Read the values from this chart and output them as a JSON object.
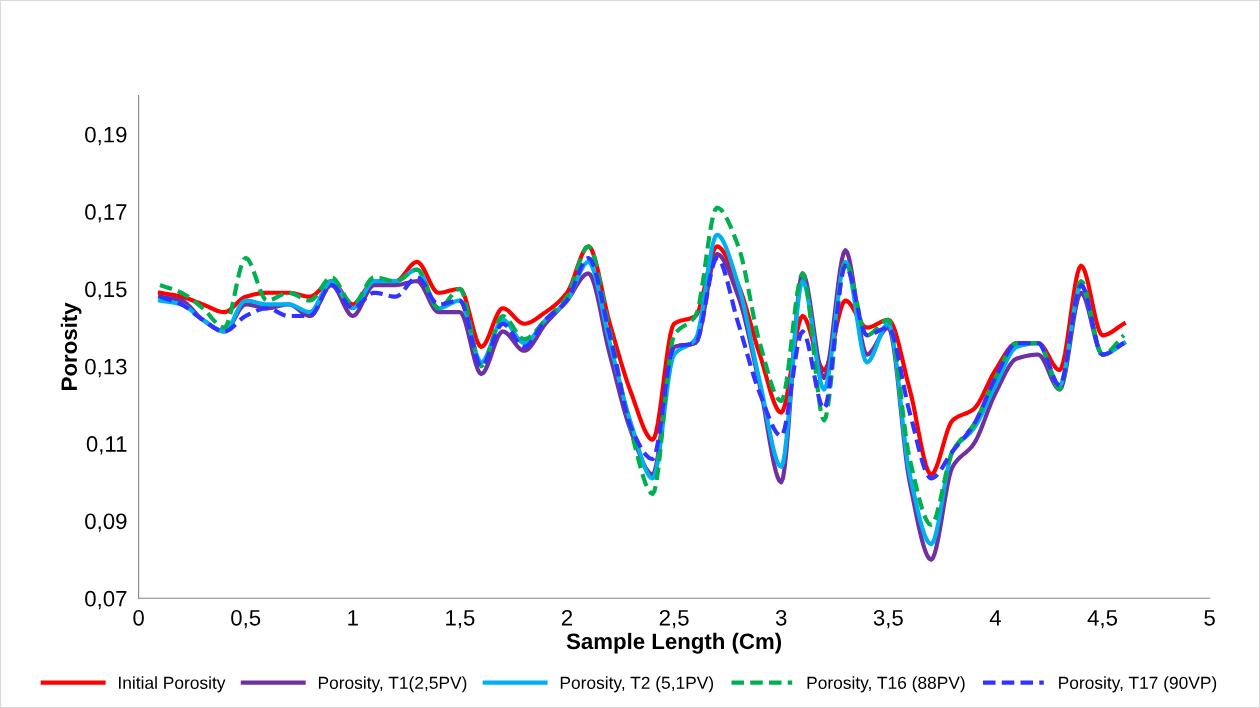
{
  "chart_data": {
    "type": "line",
    "xlabel": "Sample Length (Cm)",
    "ylabel": "Porosity",
    "x": [
      0.1,
      0.2,
      0.3,
      0.4,
      0.5,
      0.6,
      0.7,
      0.8,
      0.9,
      1.0,
      1.1,
      1.2,
      1.3,
      1.4,
      1.5,
      1.6,
      1.7,
      1.8,
      1.9,
      2.0,
      2.1,
      2.2,
      2.3,
      2.4,
      2.5,
      2.6,
      2.7,
      2.8,
      2.9,
      3.0,
      3.1,
      3.2,
      3.3,
      3.4,
      3.5,
      3.6,
      3.7,
      3.8,
      3.9,
      4.0,
      4.1,
      4.2,
      4.3,
      4.4,
      4.5,
      4.6
    ],
    "xlim": [
      0,
      5
    ],
    "xticks": [
      0,
      {
        "value": 0.5,
        "label": "0,5"
      },
      1,
      {
        "value": 1.5,
        "label": "1,5"
      },
      2,
      {
        "value": 2.5,
        "label": "2,5"
      },
      3,
      {
        "value": 3.5,
        "label": "3,5"
      },
      4,
      {
        "value": 4.5,
        "label": "4,5"
      },
      5
    ],
    "ylim": [
      0.07,
      0.2
    ],
    "yticks": [
      {
        "value": 0.07,
        "label": "0,07"
      },
      {
        "value": 0.09,
        "label": "0,09"
      },
      {
        "value": 0.11,
        "label": "0,11"
      },
      {
        "value": 0.13,
        "label": "0,13"
      },
      {
        "value": 0.15,
        "label": "0,15"
      },
      {
        "value": 0.17,
        "label": "0,17"
      },
      {
        "value": 0.19,
        "label": "0,19"
      }
    ],
    "grid": false,
    "legend": "bottom",
    "marker": "none",
    "series": [
      {
        "name": "Initial Porosity",
        "color": "#ff0000",
        "line_style": "solid",
        "values": [
          0.149,
          0.148,
          0.146,
          0.144,
          0.148,
          0.149,
          0.149,
          0.148,
          0.152,
          0.146,
          0.152,
          0.152,
          0.157,
          0.149,
          0.15,
          0.135,
          0.145,
          0.141,
          0.144,
          0.149,
          0.161,
          0.141,
          0.123,
          0.111,
          0.141,
          0.143,
          0.161,
          0.151,
          0.133,
          0.118,
          0.143,
          0.129,
          0.147,
          0.14,
          0.142,
          0.124,
          0.102,
          0.116,
          0.119,
          0.129,
          0.136,
          0.136,
          0.129,
          0.156,
          0.138,
          0.141
        ]
      },
      {
        "name": "Porosity, T1(2,5PV)",
        "color": "#7030a0",
        "line_style": "solid",
        "values": [
          0.148,
          0.147,
          0.142,
          0.139,
          0.146,
          0.145,
          0.146,
          0.143,
          0.151,
          0.143,
          0.151,
          0.151,
          0.152,
          0.144,
          0.144,
          0.128,
          0.139,
          0.134,
          0.141,
          0.147,
          0.154,
          0.133,
          0.113,
          0.102,
          0.135,
          0.136,
          0.159,
          0.148,
          0.125,
          0.1,
          0.154,
          0.127,
          0.16,
          0.133,
          0.14,
          0.1,
          0.08,
          0.104,
          0.11,
          0.123,
          0.132,
          0.133,
          0.124,
          0.149,
          0.133,
          0.136
        ]
      },
      {
        "name": "Porosity, T2 (5,1PV)",
        "color": "#00b0f0",
        "line_style": "solid",
        "values": [
          0.147,
          0.146,
          0.142,
          0.139,
          0.147,
          0.146,
          0.146,
          0.144,
          0.152,
          0.145,
          0.152,
          0.152,
          0.155,
          0.145,
          0.147,
          0.131,
          0.142,
          0.136,
          0.142,
          0.147,
          0.157,
          0.136,
          0.115,
          0.101,
          0.133,
          0.137,
          0.164,
          0.151,
          0.126,
          0.104,
          0.152,
          0.124,
          0.157,
          0.131,
          0.141,
          0.102,
          0.084,
          0.108,
          0.114,
          0.125,
          0.135,
          0.136,
          0.125,
          0.151,
          0.133,
          0.136
        ]
      },
      {
        "name": "Porosity, T16 (88PV)",
        "color": "#00b050",
        "line_style": "dashed",
        "values": [
          0.151,
          0.149,
          0.145,
          0.14,
          0.158,
          0.147,
          0.149,
          0.147,
          0.153,
          0.146,
          0.153,
          0.152,
          0.155,
          0.145,
          0.15,
          0.13,
          0.143,
          0.137,
          0.142,
          0.148,
          0.161,
          0.139,
          0.113,
          0.097,
          0.138,
          0.143,
          0.171,
          0.161,
          0.136,
          0.121,
          0.154,
          0.116,
          0.157,
          0.138,
          0.142,
          0.106,
          0.089,
          0.108,
          0.115,
          0.127,
          0.136,
          0.136,
          0.124,
          0.152,
          0.133,
          0.138
        ]
      },
      {
        "name": "Porosity, T17 (90VP)",
        "color": "#3333ff",
        "line_style": "dashed",
        "values": [
          0.148,
          0.146,
          0.142,
          0.139,
          0.143,
          0.145,
          0.143,
          0.143,
          0.151,
          0.145,
          0.149,
          0.148,
          0.153,
          0.146,
          0.147,
          0.13,
          0.141,
          0.135,
          0.142,
          0.147,
          0.158,
          0.138,
          0.114,
          0.106,
          0.135,
          0.136,
          0.158,
          0.141,
          0.123,
          0.112,
          0.139,
          0.119,
          0.156,
          0.138,
          0.14,
          0.118,
          0.101,
          0.108,
          0.115,
          0.127,
          0.136,
          0.136,
          0.125,
          0.151,
          0.133,
          0.136
        ]
      }
    ]
  }
}
